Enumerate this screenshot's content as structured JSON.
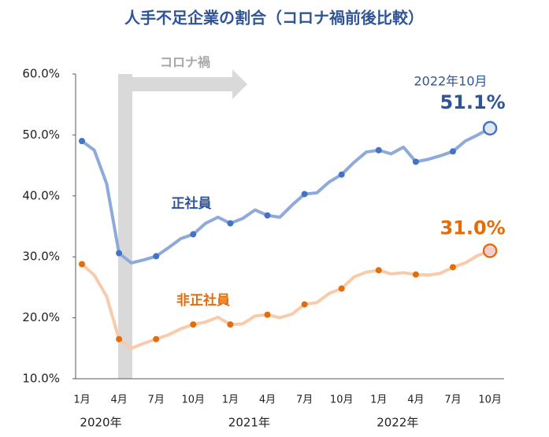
{
  "chart_data": {
    "type": "line",
    "title": "人手不足企業の割合（コロナ禍前後比較）",
    "categories": [
      "1月",
      null,
      null,
      "4月",
      null,
      null,
      "7月",
      null,
      null,
      "10月",
      null,
      null,
      "1月",
      null,
      null,
      "4月",
      null,
      null,
      "7月",
      null,
      null,
      "10月",
      null,
      null,
      "1月",
      null,
      null,
      "4月",
      null,
      null,
      "7月",
      null,
      null,
      "10月"
    ],
    "year_labels": [
      "2020年",
      "2021年",
      "2022年"
    ],
    "covid_label": "コロナ禍",
    "end_label": "2022年10月",
    "ylim": [
      10,
      60
    ],
    "yticks": [
      {
        "value": 10,
        "label": "10.0%"
      },
      {
        "value": 20,
        "label": "20.0%"
      },
      {
        "value": 30,
        "label": "30.0%"
      },
      {
        "value": 40,
        "label": "40.0%"
      },
      {
        "value": 50,
        "label": "50.0%"
      },
      {
        "value": 60,
        "label": "60.0%"
      }
    ],
    "series": [
      {
        "name": "正社員",
        "color": "#8eaadb",
        "marker_color": "#4472c4",
        "label_color": "#2f5597",
        "values": [
          49.0,
          47.5,
          42.0,
          30.6,
          29.0,
          29.5,
          30.1,
          31.5,
          33.0,
          33.7,
          35.5,
          36.5,
          35.5,
          36.3,
          37.7,
          36.8,
          36.5,
          38.5,
          40.3,
          40.5,
          42.3,
          43.5,
          45.5,
          47.2,
          47.5,
          46.9,
          48.0,
          45.6,
          46.0,
          46.6,
          47.3,
          49.0,
          50.0,
          51.1
        ],
        "value_labels": [
          null,
          null,
          null,
          null,
          null,
          null,
          null,
          null,
          null,
          null,
          null,
          null,
          null,
          null,
          null,
          null,
          null,
          null,
          null,
          null,
          null,
          null,
          null,
          null,
          null,
          null,
          null,
          null,
          null,
          null,
          null,
          null,
          null,
          "51.1%"
        ]
      },
      {
        "name": "非正社員",
        "color": "#f8cbad",
        "marker_color": "#e46c0a",
        "label_color": "#e46c0a",
        "values": [
          28.8,
          27.0,
          23.5,
          16.5,
          15.0,
          15.8,
          16.5,
          17.2,
          18.2,
          18.9,
          19.3,
          20.1,
          18.9,
          19.0,
          20.3,
          20.5,
          20.0,
          20.6,
          22.2,
          22.5,
          24.0,
          24.8,
          26.7,
          27.5,
          27.8,
          27.2,
          27.4,
          27.1,
          27.0,
          27.3,
          28.3,
          29.0,
          30.2,
          31.0
        ],
        "value_labels": [
          null,
          null,
          null,
          null,
          null,
          null,
          null,
          null,
          null,
          null,
          null,
          null,
          null,
          null,
          null,
          null,
          null,
          null,
          null,
          null,
          null,
          null,
          null,
          null,
          null,
          null,
          null,
          null,
          null,
          null,
          null,
          null,
          null,
          "31.0%"
        ]
      }
    ]
  }
}
